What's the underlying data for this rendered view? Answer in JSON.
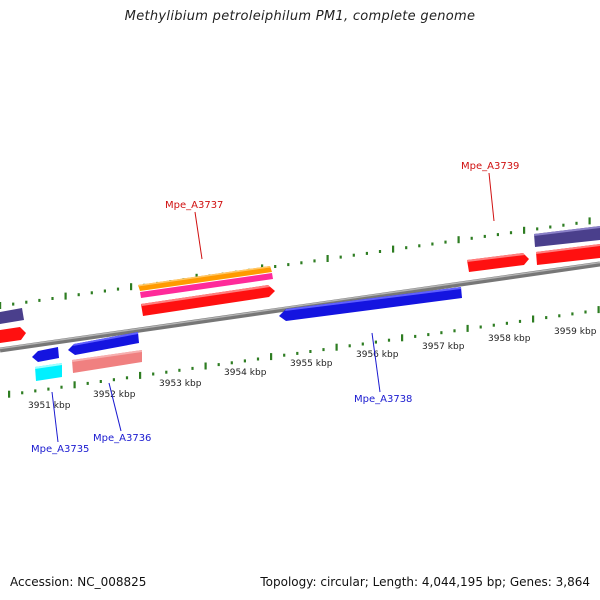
{
  "title": "Methylibium petroleiphilum PM1, complete genome",
  "footer": {
    "accession": "Accession: NC_008825",
    "stats": "Topology: circular; Length: 4,044,195 bp; Genes: 3,864"
  },
  "colors": {
    "backbone": "#888888",
    "tick": "#2e7d22",
    "forward_label": "#d01010",
    "reverse_label": "#1a1ad0",
    "red": "#ff1010",
    "blue": "#1414e0",
    "orange": "#ff9a00",
    "magenta": "#ff2a9a",
    "navy": "#4a3f8c",
    "cyan": "#00f0ff",
    "salmon": "#f08080"
  },
  "ticks": [
    {
      "label": "3951 kbp"
    },
    {
      "label": "3952 kbp"
    },
    {
      "label": "3953 kbp"
    },
    {
      "label": "3954 kbp"
    },
    {
      "label": "3955 kbp"
    },
    {
      "label": "3956 kbp"
    },
    {
      "label": "3957 kbp"
    },
    {
      "label": "3958 kbp"
    },
    {
      "label": "3959 kbp"
    }
  ],
  "gene_labels": [
    {
      "id": "Mpe_A3737",
      "strand": "forward"
    },
    {
      "id": "Mpe_A3739",
      "strand": "forward"
    },
    {
      "id": "Mpe_A3738",
      "strand": "reverse"
    },
    {
      "id": "Mpe_A3736",
      "strand": "reverse"
    },
    {
      "id": "Mpe_A3735",
      "strand": "reverse"
    }
  ]
}
